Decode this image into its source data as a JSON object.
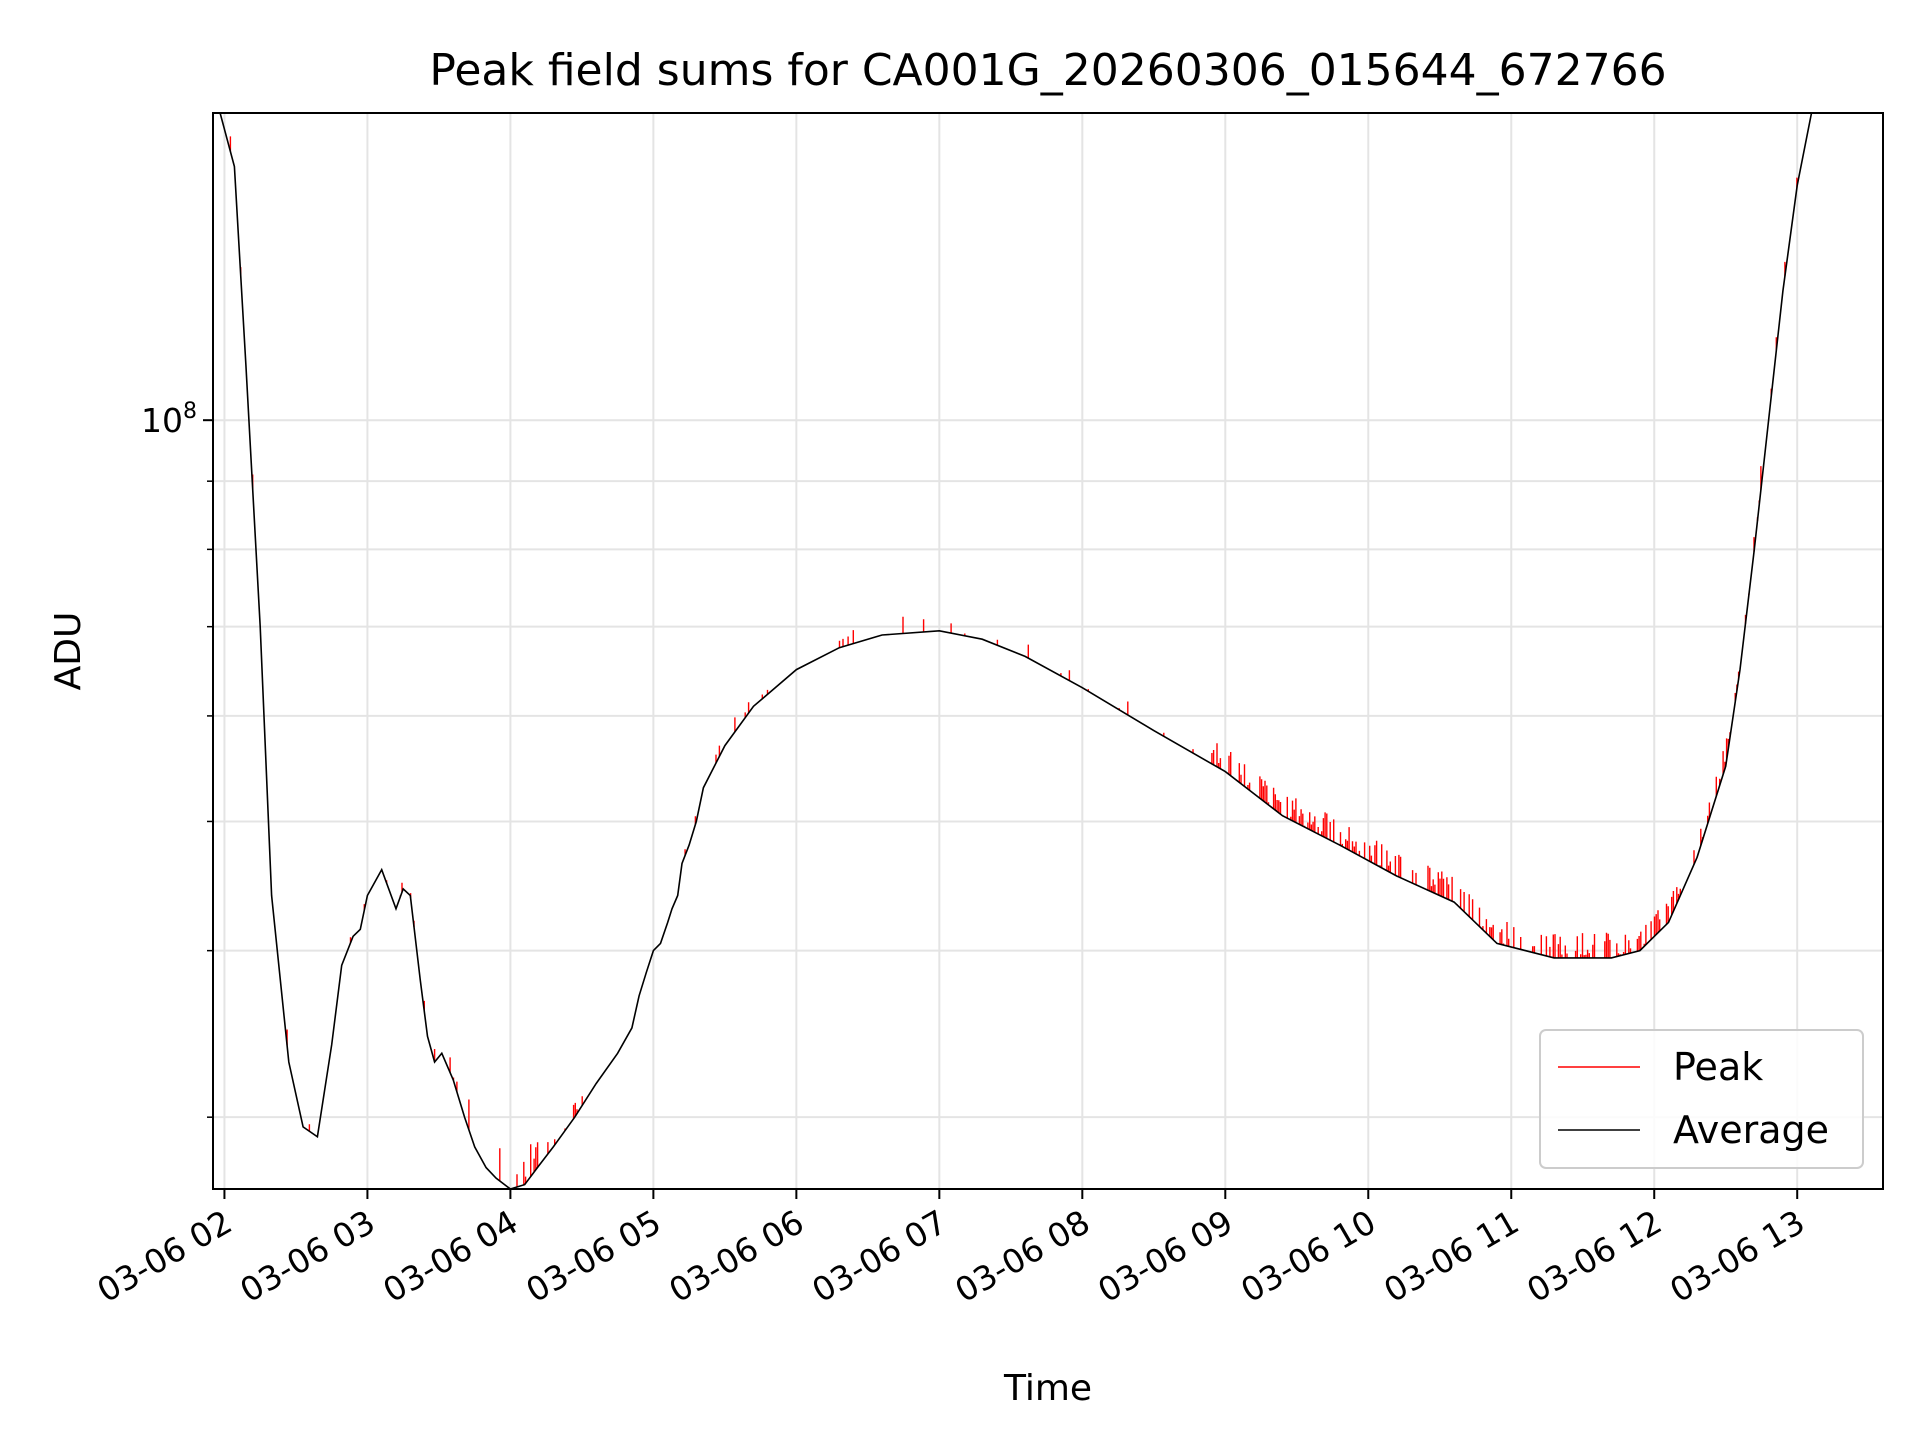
{
  "chart_data": {
    "type": "line",
    "title": "Peak field sums for CA001G_20260306_015644_672766",
    "xlabel": "Time",
    "ylabel": "ADU",
    "yscale": "log",
    "ylim": [
      26500000,
      170000000
    ],
    "xlim": [
      1.92,
      13.6
    ],
    "x_unit": "hour of 2026-03-06",
    "grid": true,
    "x_ticks": [
      {
        "value": 2,
        "label": "03-06 02"
      },
      {
        "value": 3,
        "label": "03-06 03"
      },
      {
        "value": 4,
        "label": "03-06 04"
      },
      {
        "value": 5,
        "label": "03-06 05"
      },
      {
        "value": 6,
        "label": "03-06 06"
      },
      {
        "value": 7,
        "label": "03-06 07"
      },
      {
        "value": 8,
        "label": "03-06 08"
      },
      {
        "value": 9,
        "label": "03-06 09"
      },
      {
        "value": 10,
        "label": "03-06 10"
      },
      {
        "value": 11,
        "label": "03-06 11"
      },
      {
        "value": 12,
        "label": "03-06 12"
      },
      {
        "value": 13,
        "label": "03-06 13"
      }
    ],
    "y_major_ticks": [
      {
        "value": 100000000,
        "base": "10",
        "exp": "8"
      }
    ],
    "y_minor_ticks": [
      30000000,
      40000000,
      50000000,
      60000000,
      70000000,
      80000000,
      90000000
    ],
    "legend": {
      "location": "lower-right",
      "entries": [
        "Peak",
        "Average"
      ]
    },
    "series": [
      {
        "name": "Average",
        "color": "#000000",
        "x": [
          1.97,
          2.07,
          2.15,
          2.25,
          2.33,
          2.45,
          2.55,
          2.65,
          2.75,
          2.82,
          2.9,
          2.95,
          3.0,
          3.1,
          3.2,
          3.25,
          3.3,
          3.37,
          3.42,
          3.47,
          3.52,
          3.6,
          3.68,
          3.75,
          3.83,
          3.9,
          4.0,
          4.1,
          4.2,
          4.3,
          4.45,
          4.6,
          4.75,
          4.85,
          4.9,
          4.95,
          5.0,
          5.05,
          5.1,
          5.13,
          5.17,
          5.2,
          5.25,
          5.3,
          5.35,
          5.5,
          5.7,
          6.0,
          6.3,
          6.6,
          7.0,
          7.3,
          7.6,
          8.0,
          8.5,
          9.0,
          9.4,
          9.8,
          10.2,
          10.6,
          10.9,
          11.3,
          11.5,
          11.7,
          11.9,
          12.1,
          12.3,
          12.5,
          12.6,
          12.7,
          12.8,
          12.9,
          13.0,
          13.1,
          13.2,
          13.3,
          13.38,
          13.45
        ],
        "values": [
          170000000,
          155000000,
          110000000,
          70000000,
          44000000,
          33000000,
          29500000,
          29000000,
          34000000,
          39000000,
          41000000,
          41500000,
          44000000,
          46000000,
          43000000,
          44500000,
          44000000,
          38000000,
          34500000,
          33000000,
          33500000,
          32000000,
          30000000,
          28500000,
          27500000,
          27000000,
          26500000,
          26700000,
          27600000,
          28500000,
          30000000,
          31800000,
          33500000,
          35000000,
          37000000,
          38500000,
          40000000,
          40500000,
          42000000,
          43000000,
          44000000,
          46500000,
          48000000,
          50000000,
          53000000,
          57000000,
          61000000,
          65000000,
          67500000,
          69000000,
          69500000,
          68500000,
          66500000,
          63000000,
          58500000,
          54500000,
          50500000,
          48000000,
          45500000,
          43500000,
          40500000,
          39500000,
          39500000,
          39500000,
          40000000,
          42000000,
          47000000,
          55000000,
          65000000,
          80000000,
          100000000,
          125000000,
          150000000,
          170000000,
          170000000,
          170000000,
          170000000,
          170000000
        ]
      },
      {
        "name": "Peak",
        "color": "#ff0000",
        "note": "closely follows Average with frequent short upward spikes"
      }
    ]
  }
}
